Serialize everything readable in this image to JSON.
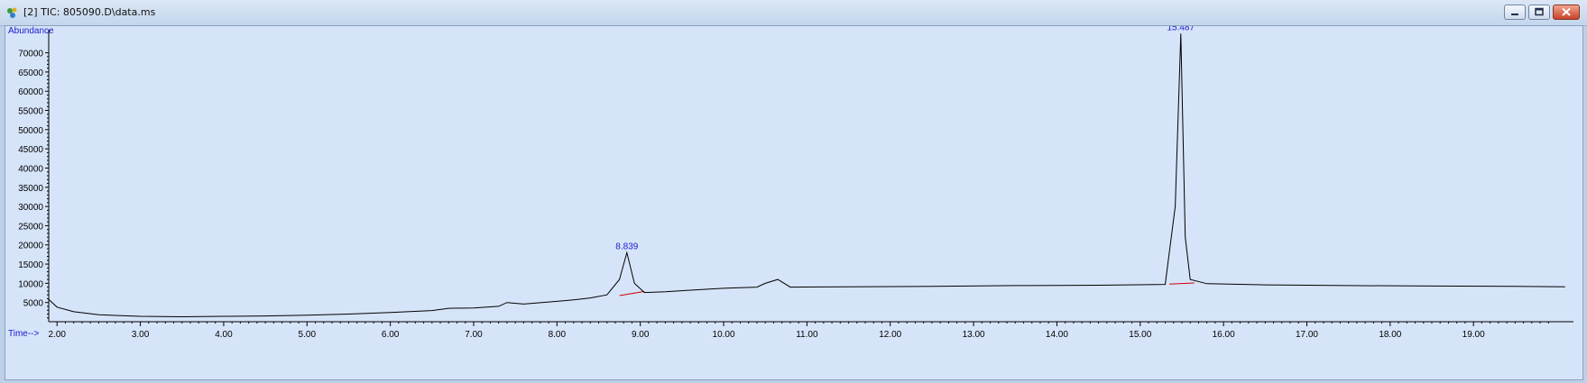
{
  "window": {
    "title": "[2] TIC: 805090.D\\data.ms",
    "icons": [
      "chromatogram-app-icon",
      "minimize-icon",
      "restore-icon",
      "close-icon"
    ]
  },
  "colors": {
    "background": "#d6e4f9",
    "trace": "#000000",
    "baseline": "#cc0000",
    "labels": "#1a1acc"
  },
  "chart_data": {
    "type": "line",
    "title": "",
    "xlabel": "Time-->",
    "ylabel": "Abundance",
    "xlim": [
      1.9,
      20.2
    ],
    "ylim": [
      0,
      76000
    ],
    "x_ticks": [
      "2.00",
      "3.00",
      "4.00",
      "5.00",
      "6.00",
      "7.00",
      "8.00",
      "9.00",
      "10.00",
      "11.00",
      "12.00",
      "13.00",
      "14.00",
      "15.00",
      "16.00",
      "17.00",
      "18.00",
      "19.00"
    ],
    "y_ticks": [
      "5000",
      "10000",
      "15000",
      "20000",
      "25000",
      "30000",
      "35000",
      "40000",
      "45000",
      "50000",
      "55000",
      "60000",
      "65000",
      "70000"
    ],
    "grid": false,
    "series": [
      {
        "x": [
          1.9,
          2.0,
          2.2,
          2.5,
          3.0,
          3.5,
          4.0,
          4.5,
          5.0,
          5.5,
          6.0,
          6.5,
          6.7,
          7.0,
          7.3,
          7.4,
          7.6,
          8.0,
          8.2,
          8.4,
          8.6,
          8.75,
          8.839,
          8.93,
          9.05,
          9.3,
          9.6,
          10.0,
          10.4,
          10.5,
          10.65,
          10.8,
          11.5,
          12.5,
          13.5,
          14.5,
          15.3,
          15.42,
          15.487,
          15.54,
          15.6,
          15.8,
          16.5,
          17.5,
          18.5,
          19.5,
          20.1
        ],
        "y": [
          5800,
          3800,
          2600,
          1800,
          1400,
          1300,
          1400,
          1500,
          1700,
          2000,
          2400,
          2900,
          3500,
          3600,
          4000,
          5000,
          4600,
          5300,
          5700,
          6200,
          7000,
          11000,
          18000,
          10000,
          7600,
          7800,
          8200,
          8700,
          9000,
          10000,
          11000,
          9000,
          9100,
          9200,
          9400,
          9500,
          9700,
          30000,
          75000,
          22000,
          11000,
          9900,
          9600,
          9400,
          9300,
          9200,
          9100
        ]
      }
    ],
    "peaks": [
      {
        "label": "8.839",
        "x": 8.839,
        "y": 18000
      },
      {
        "label": "15.487",
        "x": 15.487,
        "y": 75000
      }
    ],
    "baselines": [
      {
        "x": [
          8.75,
          9.05
        ],
        "y": [
          6800,
          7900
        ]
      },
      {
        "x": [
          15.35,
          15.65
        ],
        "y": [
          9800,
          10100
        ]
      }
    ]
  }
}
